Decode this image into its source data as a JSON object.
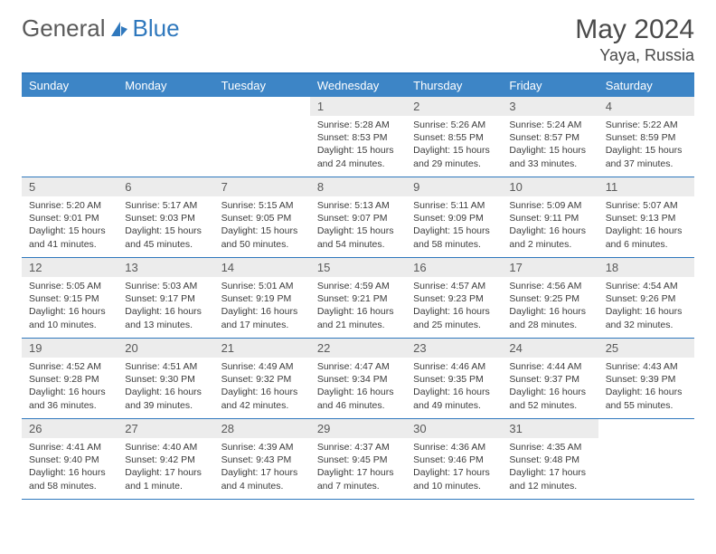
{
  "brand": {
    "part1": "General",
    "part2": "Blue"
  },
  "title": "May 2024",
  "location": "Yaya, Russia",
  "colors": {
    "accent": "#2f78bd",
    "header_bg": "#3d85c6",
    "header_fg": "#ffffff",
    "daynum_bg": "#ececec",
    "text": "#3b3b3b",
    "muted": "#5a5a5a"
  },
  "weekdays": [
    "Sunday",
    "Monday",
    "Tuesday",
    "Wednesday",
    "Thursday",
    "Friday",
    "Saturday"
  ],
  "weeks": [
    [
      null,
      null,
      null,
      {
        "n": "1",
        "sunrise": "5:28 AM",
        "sunset": "8:53 PM",
        "daylight": "15 hours and 24 minutes."
      },
      {
        "n": "2",
        "sunrise": "5:26 AM",
        "sunset": "8:55 PM",
        "daylight": "15 hours and 29 minutes."
      },
      {
        "n": "3",
        "sunrise": "5:24 AM",
        "sunset": "8:57 PM",
        "daylight": "15 hours and 33 minutes."
      },
      {
        "n": "4",
        "sunrise": "5:22 AM",
        "sunset": "8:59 PM",
        "daylight": "15 hours and 37 minutes."
      }
    ],
    [
      {
        "n": "5",
        "sunrise": "5:20 AM",
        "sunset": "9:01 PM",
        "daylight": "15 hours and 41 minutes."
      },
      {
        "n": "6",
        "sunrise": "5:17 AM",
        "sunset": "9:03 PM",
        "daylight": "15 hours and 45 minutes."
      },
      {
        "n": "7",
        "sunrise": "5:15 AM",
        "sunset": "9:05 PM",
        "daylight": "15 hours and 50 minutes."
      },
      {
        "n": "8",
        "sunrise": "5:13 AM",
        "sunset": "9:07 PM",
        "daylight": "15 hours and 54 minutes."
      },
      {
        "n": "9",
        "sunrise": "5:11 AM",
        "sunset": "9:09 PM",
        "daylight": "15 hours and 58 minutes."
      },
      {
        "n": "10",
        "sunrise": "5:09 AM",
        "sunset": "9:11 PM",
        "daylight": "16 hours and 2 minutes."
      },
      {
        "n": "11",
        "sunrise": "5:07 AM",
        "sunset": "9:13 PM",
        "daylight": "16 hours and 6 minutes."
      }
    ],
    [
      {
        "n": "12",
        "sunrise": "5:05 AM",
        "sunset": "9:15 PM",
        "daylight": "16 hours and 10 minutes."
      },
      {
        "n": "13",
        "sunrise": "5:03 AM",
        "sunset": "9:17 PM",
        "daylight": "16 hours and 13 minutes."
      },
      {
        "n": "14",
        "sunrise": "5:01 AM",
        "sunset": "9:19 PM",
        "daylight": "16 hours and 17 minutes."
      },
      {
        "n": "15",
        "sunrise": "4:59 AM",
        "sunset": "9:21 PM",
        "daylight": "16 hours and 21 minutes."
      },
      {
        "n": "16",
        "sunrise": "4:57 AM",
        "sunset": "9:23 PM",
        "daylight": "16 hours and 25 minutes."
      },
      {
        "n": "17",
        "sunrise": "4:56 AM",
        "sunset": "9:25 PM",
        "daylight": "16 hours and 28 minutes."
      },
      {
        "n": "18",
        "sunrise": "4:54 AM",
        "sunset": "9:26 PM",
        "daylight": "16 hours and 32 minutes."
      }
    ],
    [
      {
        "n": "19",
        "sunrise": "4:52 AM",
        "sunset": "9:28 PM",
        "daylight": "16 hours and 36 minutes."
      },
      {
        "n": "20",
        "sunrise": "4:51 AM",
        "sunset": "9:30 PM",
        "daylight": "16 hours and 39 minutes."
      },
      {
        "n": "21",
        "sunrise": "4:49 AM",
        "sunset": "9:32 PM",
        "daylight": "16 hours and 42 minutes."
      },
      {
        "n": "22",
        "sunrise": "4:47 AM",
        "sunset": "9:34 PM",
        "daylight": "16 hours and 46 minutes."
      },
      {
        "n": "23",
        "sunrise": "4:46 AM",
        "sunset": "9:35 PM",
        "daylight": "16 hours and 49 minutes."
      },
      {
        "n": "24",
        "sunrise": "4:44 AM",
        "sunset": "9:37 PM",
        "daylight": "16 hours and 52 minutes."
      },
      {
        "n": "25",
        "sunrise": "4:43 AM",
        "sunset": "9:39 PM",
        "daylight": "16 hours and 55 minutes."
      }
    ],
    [
      {
        "n": "26",
        "sunrise": "4:41 AM",
        "sunset": "9:40 PM",
        "daylight": "16 hours and 58 minutes."
      },
      {
        "n": "27",
        "sunrise": "4:40 AM",
        "sunset": "9:42 PM",
        "daylight": "17 hours and 1 minute."
      },
      {
        "n": "28",
        "sunrise": "4:39 AM",
        "sunset": "9:43 PM",
        "daylight": "17 hours and 4 minutes."
      },
      {
        "n": "29",
        "sunrise": "4:37 AM",
        "sunset": "9:45 PM",
        "daylight": "17 hours and 7 minutes."
      },
      {
        "n": "30",
        "sunrise": "4:36 AM",
        "sunset": "9:46 PM",
        "daylight": "17 hours and 10 minutes."
      },
      {
        "n": "31",
        "sunrise": "4:35 AM",
        "sunset": "9:48 PM",
        "daylight": "17 hours and 12 minutes."
      },
      null
    ]
  ],
  "labels": {
    "sunrise": "Sunrise:",
    "sunset": "Sunset:",
    "daylight": "Daylight:"
  }
}
